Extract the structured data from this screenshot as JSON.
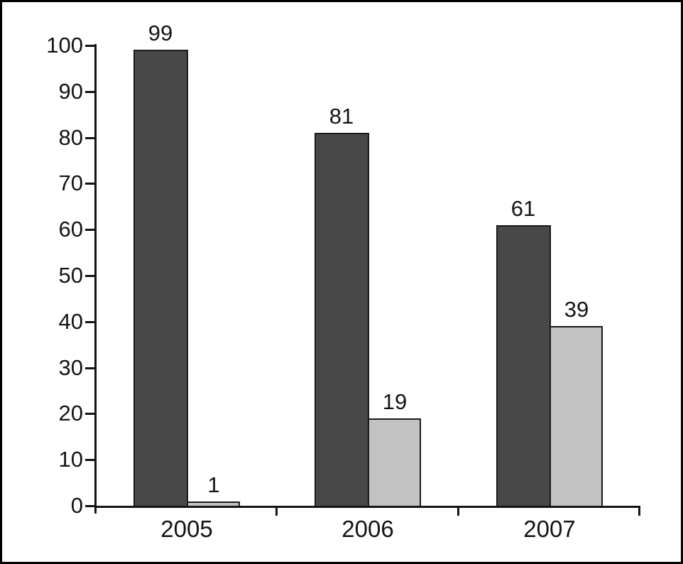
{
  "chart_data": {
    "type": "bar",
    "title": "",
    "xlabel": "",
    "ylabel": "",
    "categories": [
      "2005",
      "2006",
      "2007"
    ],
    "series": [
      {
        "name": "dark",
        "color": "#484848",
        "values": [
          99,
          81,
          61
        ]
      },
      {
        "name": "light",
        "color": "#c2c2c2",
        "values": [
          1,
          19,
          39
        ]
      }
    ],
    "bar_value_labels": [
      [
        "99",
        "81",
        "61"
      ],
      [
        "1",
        "19",
        "39"
      ]
    ],
    "ylim": [
      0,
      100
    ],
    "yticks": [
      0,
      10,
      20,
      30,
      40,
      50,
      60,
      70,
      80,
      90,
      100
    ],
    "ytick_labels": [
      "0",
      "10",
      "20",
      "30",
      "40",
      "50",
      "60",
      "70",
      "80",
      "90",
      "100"
    ],
    "grid": false,
    "legend": "none",
    "bar_border_color": "#1b1b1b",
    "axis_color": "#141414",
    "background_color": "#ffffff",
    "frame_border_color": "#000000"
  }
}
